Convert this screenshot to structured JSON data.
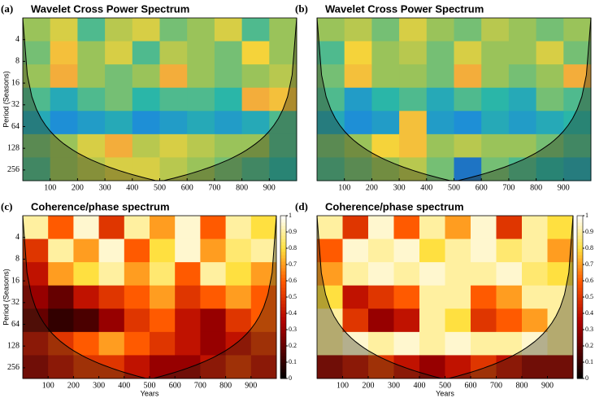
{
  "chart_data": [
    {
      "type": "heatmap",
      "label": "(a)",
      "title": "Wavelet Cross Power Spectrum",
      "ylabel": "Period (Seasons)",
      "colormap": "parula",
      "xlim": [
        0,
        1000
      ],
      "xticks": [
        100,
        200,
        300,
        400,
        500,
        600,
        700,
        800,
        900
      ],
      "ylim": [
        2,
        360
      ],
      "yscale": "log",
      "yticks": [
        4,
        8,
        16,
        32,
        64,
        128,
        256
      ],
      "values": [
        [
          0.6,
          0.7,
          0.5,
          0.65,
          0.7,
          0.55,
          0.6,
          0.7,
          0.5,
          0.6
        ],
        [
          0.55,
          0.8,
          0.6,
          0.7,
          0.5,
          0.65,
          0.6,
          0.55,
          0.75,
          0.6
        ],
        [
          0.6,
          0.85,
          0.6,
          0.55,
          0.6,
          0.85,
          0.6,
          0.55,
          0.6,
          0.65
        ],
        [
          0.5,
          0.4,
          0.5,
          0.55,
          0.45,
          0.5,
          0.5,
          0.45,
          0.85,
          0.8
        ],
        [
          0.4,
          0.3,
          0.35,
          0.4,
          0.3,
          0.35,
          0.4,
          0.35,
          0.4,
          0.5
        ],
        [
          0.55,
          0.6,
          0.7,
          0.85,
          0.65,
          0.7,
          0.65,
          0.6,
          0.6,
          0.5
        ],
        [
          0.5,
          0.6,
          0.65,
          0.7,
          0.7,
          0.65,
          0.6,
          0.55,
          0.5,
          0.45
        ]
      ]
    },
    {
      "type": "heatmap",
      "label": "(b)",
      "title": "Wavelet Cross Power Spectrum",
      "colormap": "parula",
      "xlim": [
        0,
        1000
      ],
      "xticks": [
        100,
        200,
        300,
        400,
        500,
        600,
        700,
        800,
        900
      ],
      "ylim": [
        2,
        360
      ],
      "yscale": "log",
      "values": [
        [
          0.6,
          0.65,
          0.55,
          0.7,
          0.6,
          0.55,
          0.65,
          0.6,
          0.55,
          0.6
        ],
        [
          0.5,
          0.75,
          0.6,
          0.65,
          0.55,
          0.7,
          0.6,
          0.6,
          0.7,
          0.55
        ],
        [
          0.55,
          0.8,
          0.6,
          0.6,
          0.55,
          0.85,
          0.6,
          0.55,
          0.6,
          0.85
        ],
        [
          0.5,
          0.35,
          0.45,
          0.5,
          0.4,
          0.5,
          0.45,
          0.4,
          0.55,
          0.5
        ],
        [
          0.4,
          0.3,
          0.35,
          0.8,
          0.35,
          0.3,
          0.4,
          0.35,
          0.4,
          0.45
        ],
        [
          0.55,
          0.6,
          0.75,
          0.8,
          0.6,
          0.65,
          0.6,
          0.6,
          0.55,
          0.5
        ],
        [
          0.5,
          0.55,
          0.6,
          0.65,
          0.55,
          0.2,
          0.55,
          0.5,
          0.45,
          0.4
        ]
      ]
    },
    {
      "type": "heatmap",
      "label": "(c)",
      "title": "Coherence/phase spectrum",
      "ylabel": "Period (Seasons)",
      "xlabel": "Years",
      "colormap": "hot",
      "xlim": [
        0,
        1000
      ],
      "xticks": [
        100,
        200,
        300,
        400,
        500,
        600,
        700,
        800,
        900
      ],
      "ylim": [
        2,
        360
      ],
      "yscale": "log",
      "yticks": [
        4,
        8,
        16,
        32,
        64,
        128,
        256
      ],
      "clim": [
        0,
        1
      ],
      "cticks": [
        0,
        0.1,
        0.2,
        0.3,
        0.4,
        0.5,
        0.6,
        0.7,
        0.8,
        0.9,
        1
      ],
      "values": [
        [
          0.9,
          0.6,
          0.95,
          0.5,
          0.9,
          0.7,
          0.95,
          0.6,
          0.9,
          0.8
        ],
        [
          0.5,
          0.9,
          0.7,
          0.95,
          0.6,
          0.8,
          0.95,
          0.7,
          0.85,
          0.9
        ],
        [
          0.4,
          0.7,
          0.8,
          0.9,
          0.7,
          0.85,
          0.6,
          0.9,
          0.8,
          0.7
        ],
        [
          0.3,
          0.2,
          0.4,
          0.5,
          0.6,
          0.7,
          0.5,
          0.6,
          0.7,
          0.6
        ],
        [
          0.2,
          0.1,
          0.15,
          0.3,
          0.5,
          0.6,
          0.4,
          0.3,
          0.5,
          0.6
        ],
        [
          0.4,
          0.5,
          0.6,
          0.7,
          0.6,
          0.5,
          0.4,
          0.3,
          0.4,
          0.5
        ],
        [
          0.3,
          0.4,
          0.5,
          0.5,
          0.4,
          0.3,
          0.3,
          0.4,
          0.5,
          0.4
        ]
      ]
    },
    {
      "type": "heatmap",
      "label": "(d)",
      "title": "Coherence/phase spectrum",
      "xlabel": "Years",
      "colormap": "hot",
      "xlim": [
        0,
        1000
      ],
      "xticks": [
        100,
        200,
        300,
        400,
        500,
        600,
        700,
        800,
        900
      ],
      "ylim": [
        2,
        360
      ],
      "yscale": "log",
      "clim": [
        0,
        1
      ],
      "cticks": [
        0,
        0.1,
        0.2,
        0.3,
        0.4,
        0.5,
        0.6,
        0.7,
        0.8,
        0.9,
        1
      ],
      "values": [
        [
          0.9,
          0.5,
          0.95,
          0.6,
          0.9,
          0.7,
          0.95,
          0.5,
          0.9,
          0.8
        ],
        [
          0.6,
          0.95,
          0.9,
          0.95,
          0.8,
          0.9,
          0.95,
          0.85,
          0.9,
          0.7
        ],
        [
          0.7,
          0.9,
          0.95,
          0.9,
          0.95,
          0.9,
          0.9,
          0.95,
          0.85,
          0.8
        ],
        [
          0.8,
          0.4,
          0.5,
          0.6,
          0.9,
          0.9,
          0.6,
          0.7,
          0.9,
          0.9
        ],
        [
          0.9,
          0.5,
          0.3,
          0.4,
          0.9,
          0.8,
          0.5,
          0.6,
          0.7,
          0.9
        ],
        [
          0.9,
          0.95,
          0.9,
          0.95,
          0.9,
          0.95,
          0.9,
          0.9,
          0.95,
          0.9
        ],
        [
          0.3,
          0.4,
          0.5,
          0.4,
          0.3,
          0.4,
          0.5,
          0.4,
          0.3,
          0.3
        ]
      ]
    }
  ]
}
